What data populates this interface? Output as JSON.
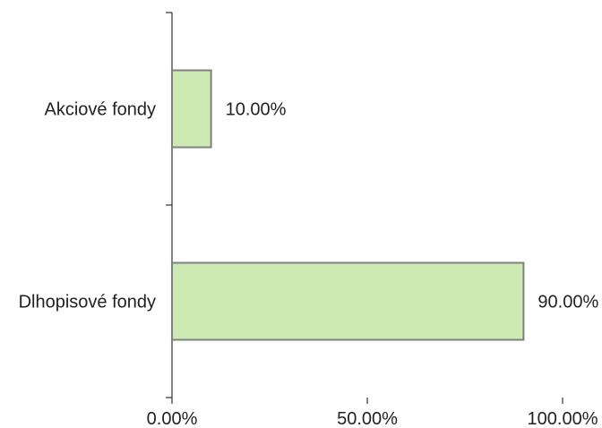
{
  "chart_data": {
    "type": "bar",
    "orientation": "horizontal",
    "categories": [
      "Akciové fondy",
      "Dlhopisové fondy"
    ],
    "values": [
      10.0,
      90.0
    ],
    "data_labels": [
      "10.00%",
      "90.00%"
    ],
    "xlim": [
      0,
      100
    ],
    "x_ticks": [
      0,
      50,
      100
    ],
    "x_tick_labels": [
      "0.00%",
      "50.00%",
      "100.00%"
    ],
    "bar_color": "#cdeab4",
    "bar_edge_color": "#808080",
    "grid": false,
    "legend": "none",
    "title": "",
    "xlabel": "",
    "ylabel": ""
  }
}
